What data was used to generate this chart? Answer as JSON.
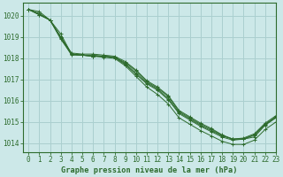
{
  "title": "Graphe pression niveau de la mer (hPa)",
  "background_color": "#cce8e8",
  "grid_color": "#aacfcf",
  "line_color": "#2d6b2d",
  "xlim": [
    -0.5,
    23
  ],
  "ylim": [
    1013.6,
    1020.6
  ],
  "yticks": [
    1014,
    1015,
    1016,
    1017,
    1018,
    1019,
    1020
  ],
  "xticks": [
    0,
    1,
    2,
    3,
    4,
    5,
    6,
    7,
    8,
    9,
    10,
    11,
    12,
    13,
    14,
    15,
    16,
    17,
    18,
    19,
    20,
    21,
    22,
    23
  ],
  "series": [
    [
      1020.3,
      1020.2,
      1019.8,
      1019.0,
      1018.2,
      1018.15,
      1018.1,
      1018.1,
      1018.05,
      1017.75,
      1017.3,
      1016.85,
      1016.55,
      1016.1,
      1015.45,
      1015.15,
      1014.85,
      1014.6,
      1014.35,
      1014.2,
      1014.2,
      1014.3,
      1014.85,
      1015.2
    ],
    [
      1020.3,
      1020.1,
      1019.8,
      1019.0,
      1018.25,
      1018.2,
      1018.2,
      1018.15,
      1018.1,
      1017.85,
      1017.45,
      1016.95,
      1016.65,
      1016.25,
      1015.55,
      1015.25,
      1014.95,
      1014.7,
      1014.4,
      1014.2,
      1014.25,
      1014.45,
      1014.95,
      1015.3
    ],
    [
      1020.3,
      1020.05,
      1019.8,
      1018.95,
      1018.15,
      1018.15,
      1018.15,
      1018.1,
      1018.05,
      1017.8,
      1017.4,
      1016.9,
      1016.6,
      1016.2,
      1015.5,
      1015.2,
      1014.9,
      1014.65,
      1014.38,
      1014.2,
      1014.22,
      1014.4,
      1014.9,
      1015.25
    ],
    [
      1020.3,
      1020.1,
      1019.8,
      1018.9,
      1018.2,
      1018.15,
      1018.1,
      1018.1,
      1018.05,
      1017.7,
      1017.25,
      1016.8,
      1016.5,
      1016.05,
      1015.4,
      1015.1,
      1014.8,
      1014.55,
      1014.3,
      1014.15,
      1014.2,
      1014.38,
      1014.88,
      1015.22
    ]
  ],
  "series2": [
    [
      1020.3,
      1020.05,
      1019.8,
      1019.15,
      1018.2,
      1018.15,
      1018.1,
      1018.05,
      1018.0,
      1017.65,
      1017.15,
      1016.65,
      1016.3,
      1015.85,
      1015.2,
      1014.9,
      1014.6,
      1014.35,
      1014.1,
      1013.95,
      1013.95,
      1014.15,
      1014.65,
      1015.0
    ]
  ]
}
